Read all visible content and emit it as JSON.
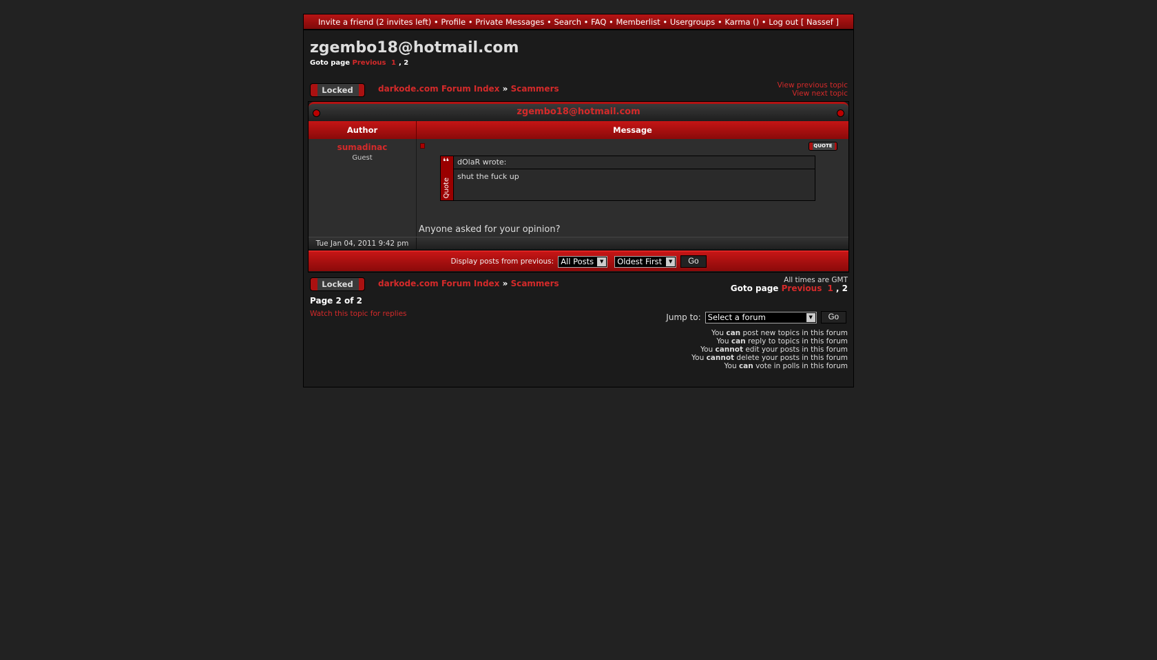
{
  "nav": {
    "items": [
      "Invite a friend (2 invites left)",
      "Profile",
      "Private Messages",
      "Search",
      "FAQ",
      "Memberlist",
      "Usergroups",
      "Karma ()",
      "Log out [ Nassef ]"
    ]
  },
  "topic": {
    "title": "zgembo18@hotmail.com",
    "goto_label": "Goto page",
    "previous": "Previous",
    "page1": "1",
    "page2": "2",
    "locked": "Locked"
  },
  "breadcrumb": {
    "index": "darkode.com Forum Index",
    "sep": "»",
    "forum": "Scammers"
  },
  "topic_nav": {
    "prev": "View previous topic",
    "next": "View next topic"
  },
  "table": {
    "header": "zgembo18@hotmail.com",
    "col_author": "Author",
    "col_message": "Message"
  },
  "post": {
    "author": "sumadinac",
    "rank": "Guest",
    "quote_btn": "QUOTE",
    "quote_side": "Quote",
    "quote_author": "dOlaR wrote:",
    "quote_text": "shut the fuck up",
    "text": "Anyone asked for your opinion?",
    "date": "Tue Jan 04, 2011 9:42 pm"
  },
  "display": {
    "label": "Display posts from previous:",
    "range": "All Posts",
    "order": "Oldest First",
    "go": "Go"
  },
  "footer": {
    "times": "All times are GMT",
    "page_of": "Page 2 of 2",
    "watch": "Watch this topic for replies",
    "jump_label": "Jump to:",
    "jump_value": "Select a forum",
    "go": "Go"
  },
  "permissions": [
    {
      "a": "You ",
      "b": "can",
      "c": " post new topics in this forum"
    },
    {
      "a": "You ",
      "b": "can",
      "c": " reply to topics in this forum"
    },
    {
      "a": "You ",
      "b": "cannot",
      "c": " edit your posts in this forum"
    },
    {
      "a": "You ",
      "b": "cannot",
      "c": " delete your posts in this forum"
    },
    {
      "a": "You ",
      "b": "can",
      "c": " vote in polls in this forum"
    }
  ]
}
